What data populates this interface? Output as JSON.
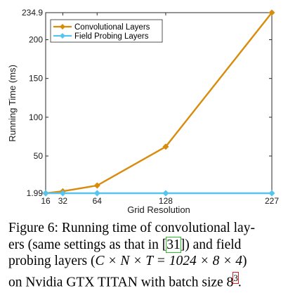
{
  "chart_data": {
    "type": "line",
    "xlabel": "Grid Resolution",
    "ylabel": "Running Time (ms)",
    "x": [
      16,
      32,
      64,
      128,
      227
    ],
    "xticks": [
      16,
      32,
      64,
      128,
      227
    ],
    "yticks": [
      1.99,
      50,
      100,
      150,
      200,
      234.9
    ],
    "xlim": [
      16,
      227
    ],
    "ylim": [
      1.99,
      234.9
    ],
    "grid": false,
    "legend_position": "top-left",
    "series": [
      {
        "name": "Convolutional Layers",
        "values": [
          1.99,
          4.5,
          12,
          62,
          234.9
        ],
        "color": "#d98b0c",
        "marker": "diamond"
      },
      {
        "name": "Field Probing Layers",
        "values": [
          1.99,
          1.99,
          1.99,
          1.99,
          1.99
        ],
        "color": "#55c5f0",
        "marker": "diamond"
      }
    ]
  },
  "caption": {
    "line1": "Figure 6: Running time of convolutional lay-",
    "line2_pre": "ers (same settings as that in [",
    "line2_cite": "31",
    "line2_post": "]) and field",
    "line3_pre": "probing layers (",
    "line3_math": "C × N × T = 1024 × 8 × 4",
    "line3_post": ")",
    "line4_pre": "on Nvidia GTX TITAN with batch size 8",
    "line4_footnote": "3",
    "line4_post": "."
  }
}
